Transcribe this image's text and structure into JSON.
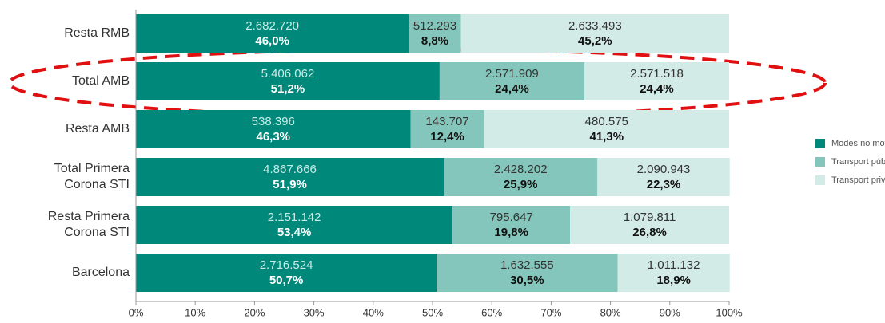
{
  "chart_data": {
    "type": "stacked-bar-horizontal",
    "categories": [
      "Resta RMB",
      "Total AMB",
      "Resta AMB",
      "Total Primera Corona STI",
      "Resta Primera Corona STI",
      "Barcelona"
    ],
    "series": [
      {
        "name": "Modes no motoritzats",
        "color": "#00897b",
        "values": [
          46.0,
          51.2,
          46.3,
          51.9,
          53.4,
          50.7
        ],
        "value_labels": [
          "46,0%",
          "51,2%",
          "46,3%",
          "51,9%",
          "53,4%",
          "50,7%"
        ],
        "counts": [
          2682720,
          5406062,
          538396,
          4867666,
          2151142,
          2716524
        ],
        "count_labels": [
          "2.682.720",
          "5.406.062",
          "538.396",
          "4.867.666",
          "2.151.142",
          "2.716.524"
        ]
      },
      {
        "name": "Transport públic",
        "color": "#84c6bb",
        "values": [
          8.8,
          24.4,
          12.4,
          25.9,
          19.8,
          30.5
        ],
        "value_labels": [
          "8,8%",
          "24,4%",
          "12,4%",
          "25,9%",
          "19,8%",
          "30,5%"
        ],
        "counts": [
          512293,
          2571909,
          143707,
          2428202,
          795647,
          1632555
        ],
        "count_labels": [
          "512.293",
          "2.571.909",
          "143.707",
          "2.428.202",
          "795.647",
          "1.632.555"
        ]
      },
      {
        "name": "Transport privat",
        "color": "#d3ebe6",
        "values": [
          45.2,
          24.4,
          41.3,
          22.3,
          26.8,
          18.9
        ],
        "value_labels": [
          "45,2%",
          "24,4%",
          "41,3%",
          "22,3%",
          "26,8%",
          "18,9%"
        ],
        "counts": [
          2633493,
          2571518,
          480575,
          2090943,
          1079811,
          1011132
        ],
        "count_labels": [
          "2.633.493",
          "2.571.518",
          "480.575",
          "2.090.943",
          "1.079.811",
          "1.011.132"
        ]
      }
    ],
    "xlim": [
      0,
      100
    ],
    "xticks": [
      {
        "value": 0,
        "label": "0%"
      },
      {
        "value": 10,
        "label": "10%"
      },
      {
        "value": 20,
        "label": "20%"
      },
      {
        "value": 30,
        "label": "30%"
      },
      {
        "value": 40,
        "label": "40%"
      },
      {
        "value": 50,
        "label": "50%"
      },
      {
        "value": 60,
        "label": "60%"
      },
      {
        "value": 70,
        "label": "70%"
      },
      {
        "value": 80,
        "label": "80%"
      },
      {
        "value": 90,
        "label": "90%"
      },
      {
        "value": 100,
        "label": "100%"
      }
    ],
    "legend": "right"
  }
}
